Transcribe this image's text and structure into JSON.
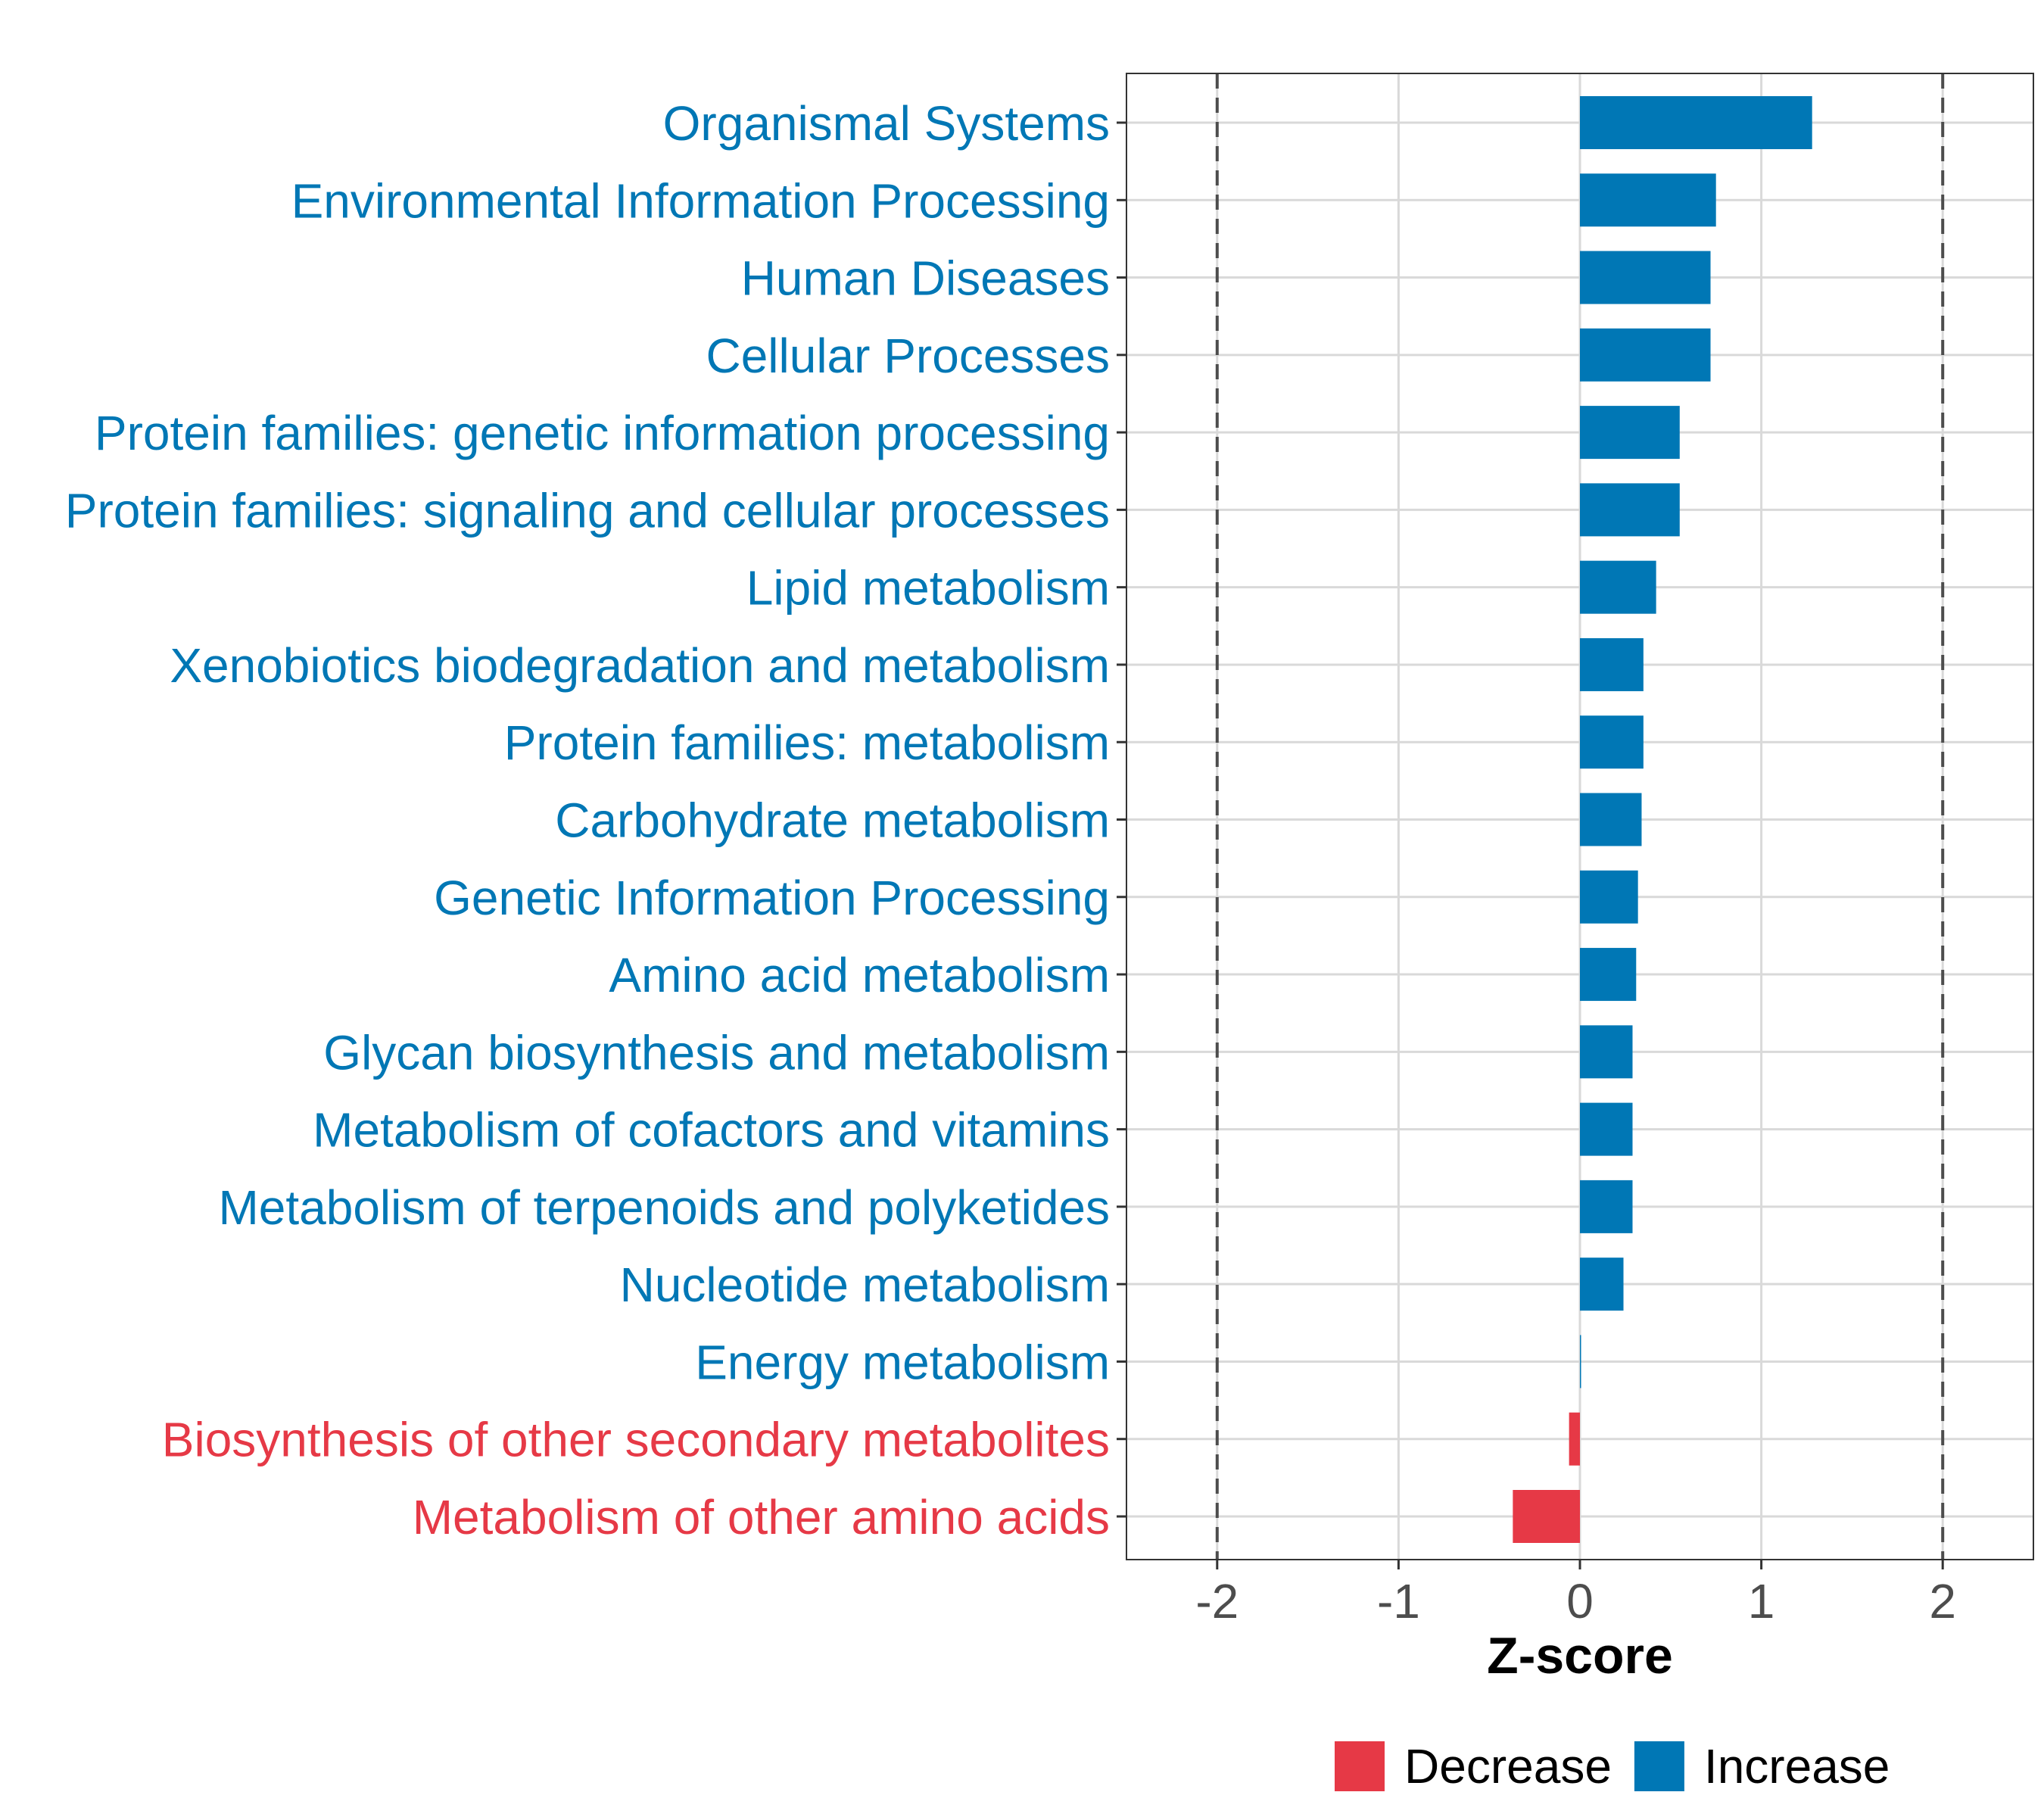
{
  "colors": {
    "increase": "#0077b5",
    "decrease": "#e63946",
    "grid": "#d9d9d9",
    "axis_text": "#4d4d4d",
    "panel_border": "#333333",
    "threshold": "#4d4d4d"
  },
  "chart_data": {
    "type": "bar",
    "orientation": "horizontal",
    "xlabel": "Z-score",
    "xlim": [
      -2.5,
      2.5
    ],
    "xticks": [
      -2,
      -1,
      0,
      1,
      2
    ],
    "xtick_labels": [
      "-2",
      "-1",
      "0",
      "1",
      "2"
    ],
    "threshold_lines": [
      -2,
      2
    ],
    "grid": true,
    "legend_position": "bottom",
    "legend": [
      {
        "label": "Decrease",
        "key": "decrease"
      },
      {
        "label": "Increase",
        "key": "increase"
      }
    ],
    "categories": [
      "Organismal Systems",
      "Environmental Information Processing",
      "Human Diseases",
      "Cellular Processes",
      "Protein families: genetic information processing",
      "Protein families: signaling and cellular processes",
      "Lipid metabolism",
      "Xenobiotics biodegradation and metabolism",
      "Protein families: metabolism",
      "Carbohydrate metabolism",
      "Genetic Information Processing",
      "Amino acid metabolism",
      "Glycan biosynthesis and metabolism",
      "Metabolism of cofactors and vitamins",
      "Metabolism of terpenoids and polyketides",
      "Nucleotide metabolism",
      "Energy metabolism",
      "Biosynthesis of other secondary metabolites",
      "Metabolism of other amino acids"
    ],
    "values": [
      1.28,
      0.75,
      0.72,
      0.72,
      0.55,
      0.55,
      0.42,
      0.35,
      0.35,
      0.34,
      0.32,
      0.31,
      0.29,
      0.29,
      0.29,
      0.24,
      0.005,
      -0.06,
      -0.37
    ],
    "direction": [
      "increase",
      "increase",
      "increase",
      "increase",
      "increase",
      "increase",
      "increase",
      "increase",
      "increase",
      "increase",
      "increase",
      "increase",
      "increase",
      "increase",
      "increase",
      "increase",
      "increase",
      "decrease",
      "decrease"
    ]
  }
}
